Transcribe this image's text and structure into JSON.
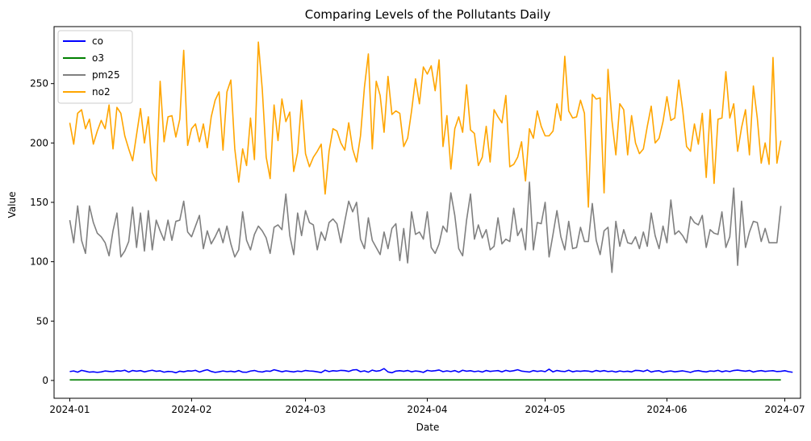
{
  "chart_data": {
    "type": "line",
    "title": "Comparing Levels of the Pollutants Daily",
    "xlabel": "Date",
    "ylabel": "Value",
    "x_start": "2024-01-01",
    "x_end": "2024-06-30",
    "xlim_days": [
      -4,
      186
    ],
    "ylim": [
      -15,
      298
    ],
    "y_ticks": [
      0,
      50,
      100,
      150,
      200,
      250
    ],
    "x_ticks": [
      {
        "label": "2024-01",
        "day": 0
      },
      {
        "label": "2024-02",
        "day": 31
      },
      {
        "label": "2024-03",
        "day": 60
      },
      {
        "label": "2024-04",
        "day": 91
      },
      {
        "label": "2024-05",
        "day": 121
      },
      {
        "label": "2024-06",
        "day": 152
      },
      {
        "label": "2024-07",
        "day": 182
      }
    ],
    "legend_position": "top-left",
    "series": [
      {
        "name": "co",
        "color": "#0000ff",
        "values": [
          7.5,
          8,
          7,
          8.5,
          7.8,
          7,
          7.3,
          6.8,
          7.2,
          8,
          7.6,
          7.4,
          8.2,
          7.9,
          8.6,
          7.1,
          8.4,
          7.8,
          8.3,
          7.2,
          8,
          8.6,
          7.7,
          8.1,
          7,
          7.6,
          7.4,
          6.5,
          7.8,
          7.3,
          8.1,
          7.9,
          8.5,
          7.1,
          8.2,
          9,
          7.6,
          6.8,
          7.3,
          8,
          7.4,
          7.8,
          7.2,
          8.3,
          7,
          6.9,
          7.9,
          8.4,
          7.5,
          7.1,
          8,
          7.7,
          9,
          8.2,
          7.3,
          8.1,
          7.6,
          7.2,
          7.9,
          7.5,
          8.4,
          8,
          7.8,
          7.3,
          6.7,
          8.6,
          7.5,
          8.2,
          7.9,
          8.5,
          8.3,
          7.6,
          8.8,
          9.1,
          7.4,
          8.1,
          7,
          8.7,
          7.8,
          8.3,
          10,
          7.2,
          6.5,
          7.9,
          8.2,
          7.7,
          8.4,
          7.3,
          8,
          7.6,
          6.8,
          8.5,
          7.9,
          8.2,
          8.8,
          7.4,
          8.1,
          7.5,
          8.3,
          7,
          8.6,
          7.8,
          8.2,
          7.4,
          7.9,
          7.1,
          8.4,
          7.6,
          8,
          8.3,
          7.2,
          8.5,
          7.7,
          8.2,
          9,
          7.9,
          7.5,
          7.1,
          8.3,
          7.6,
          8.1,
          7.4,
          9.5,
          7.2,
          8.4,
          7.8,
          7.5,
          8.6,
          7.3,
          8,
          7.7,
          8.1,
          7.9,
          7.2,
          8.4,
          7.6,
          8.3,
          7.5,
          7.9,
          7.1,
          8,
          7.4,
          7.8,
          7.2,
          8.5,
          8.3,
          7.6,
          8.8,
          7.1,
          7.9,
          8.2,
          6.9,
          7.6,
          8,
          7.3,
          7.7,
          8.1,
          7.5,
          6.8,
          7.9,
          8.3,
          7.6,
          7.2,
          8,
          7.7,
          8.5,
          7.3,
          8.1,
          7.5,
          8.4,
          8.7,
          8.2,
          7.8,
          8.4,
          7.1,
          7.9,
          8.3,
          7.6,
          8,
          8.2,
          7.5,
          7.7,
          8.2,
          7.4,
          6.9
        ]
      },
      {
        "name": "o3",
        "color": "#008000",
        "values": [
          0.5,
          0.5,
          0.5,
          0.5,
          0.5,
          0.5,
          0.5,
          0.5,
          0.5,
          0.5,
          0.5,
          0.5,
          0.5,
          0.5,
          0.5,
          0.5,
          0.5,
          0.5,
          0.5,
          0.5,
          0.5,
          0.5,
          0.5,
          0.5,
          0.5,
          0.5,
          0.5,
          0.5,
          0.5,
          0.5,
          0.5,
          0.5,
          0.5,
          0.5,
          0.5,
          0.5,
          0.5,
          0.5,
          0.5,
          0.5,
          0.5,
          0.5,
          0.5,
          0.5,
          0.5,
          0.5,
          0.5,
          0.5,
          0.5,
          0.5,
          0.5,
          0.5,
          0.5,
          0.5,
          0.5,
          0.5,
          0.5,
          0.5,
          0.5,
          0.5,
          0.5,
          0.5,
          0.5,
          0.5,
          0.5,
          0.5,
          0.5,
          0.5,
          0.5,
          0.5,
          0.5,
          0.5,
          0.5,
          0.5,
          0.5,
          0.5,
          0.5,
          0.5,
          0.5,
          0.5,
          0.5,
          0.5,
          0.5,
          0.5,
          0.5,
          0.5,
          0.5,
          0.5,
          0.5,
          0.5,
          0.5,
          0.5,
          0.5,
          0.5,
          0.5,
          0.5,
          0.5,
          0.5,
          0.5,
          0.5,
          0.5,
          0.5,
          0.5,
          0.5,
          0.5,
          0.5,
          0.5,
          0.5,
          0.5,
          0.5,
          0.5,
          0.5,
          0.5,
          0.5,
          0.5,
          0.5,
          0.5,
          0.5,
          0.5,
          0.5,
          0.5,
          0.5,
          0.5,
          0.5,
          0.5,
          0.5,
          0.5,
          0.5,
          0.5,
          0.5,
          0.5,
          0.5,
          0.5,
          0.5,
          0.5,
          0.5,
          0.5,
          0.5,
          0.5,
          0.5,
          0.5,
          0.5,
          0.5,
          0.5,
          0.5,
          0.5,
          0.5,
          0.5,
          0.5,
          0.5,
          0.5,
          0.5,
          0.5,
          0.5,
          0.5,
          0.5,
          0.5,
          0.5,
          0.5,
          0.5,
          0.5,
          0.5,
          0.5,
          0.5,
          0.5,
          0.5,
          0.5,
          0.5,
          0.5,
          0.5,
          0.5,
          0.5,
          0.5,
          0.5,
          0.5,
          0.5,
          0.5,
          0.5,
          0.5,
          0.5,
          0.5,
          0.5
        ]
      },
      {
        "name": "pm25",
        "color": "#808080",
        "values": [
          135,
          116,
          147,
          118,
          107,
          147,
          133,
          124,
          121,
          116,
          105,
          126,
          141,
          104,
          109,
          117,
          146,
          112,
          141,
          109,
          143,
          110,
          135,
          126,
          118,
          135,
          118,
          134,
          135,
          151,
          125,
          121,
          130,
          139,
          111,
          126,
          115,
          121,
          128,
          116,
          130,
          115,
          104,
          110,
          142,
          118,
          110,
          123,
          130,
          126,
          120,
          107,
          129,
          131,
          127,
          157,
          122,
          106,
          141,
          122,
          143,
          133,
          131,
          110,
          125,
          118,
          133,
          136,
          132,
          116,
          134,
          151,
          142,
          150,
          119,
          111,
          137,
          118,
          112,
          106,
          125,
          111,
          128,
          132,
          101,
          128,
          99,
          142,
          123,
          125,
          119,
          142,
          112,
          107,
          115,
          130,
          125,
          158,
          139,
          111,
          105,
          135,
          157,
          119,
          131,
          120,
          127,
          110,
          113,
          137,
          115,
          119,
          117,
          145,
          122,
          128,
          110,
          167,
          110,
          133,
          132,
          150,
          104,
          123,
          143,
          121,
          110,
          134,
          111,
          112,
          129,
          117,
          117,
          149,
          118,
          106,
          126,
          129,
          91,
          134,
          113,
          127,
          116,
          115,
          121,
          111,
          125,
          113,
          141,
          122,
          111,
          130,
          116,
          152,
          123,
          126,
          122,
          116,
          138,
          133,
          131,
          139,
          112,
          127,
          124,
          123,
          142,
          112,
          121,
          162,
          97,
          151,
          112,
          125,
          134,
          133,
          117,
          128,
          116,
          116,
          116,
          147
        ]
      },
      {
        "name": "no2",
        "color": "#ffa500",
        "values": [
          217,
          199,
          225,
          228,
          212,
          220,
          199,
          210,
          219,
          212,
          232,
          195,
          230,
          225,
          206,
          195,
          185,
          207,
          229,
          200,
          222,
          175,
          168,
          252,
          201,
          222,
          223,
          205,
          220,
          278,
          198,
          212,
          216,
          201,
          216,
          196,
          222,
          236,
          243,
          194,
          243,
          253,
          195,
          167,
          195,
          181,
          221,
          186,
          285,
          245,
          188,
          170,
          232,
          202,
          237,
          218,
          226,
          176,
          192,
          236,
          191,
          180,
          188,
          193,
          199,
          157,
          193,
          212,
          210,
          200,
          194,
          217,
          195,
          184,
          206,
          247,
          275,
          195,
          252,
          240,
          209,
          256,
          224,
          227,
          225,
          197,
          204,
          227,
          254,
          233,
          264,
          258,
          265,
          244,
          270,
          197,
          223,
          178,
          212,
          222,
          209,
          249,
          211,
          208,
          181,
          188,
          214,
          184,
          228,
          222,
          217,
          240,
          180,
          182,
          188,
          201,
          168,
          212,
          204,
          227,
          214,
          206,
          206,
          210,
          233,
          219,
          273,
          227,
          221,
          222,
          236,
          225,
          146,
          241,
          237,
          238,
          158,
          262,
          219,
          190,
          233,
          228,
          190,
          223,
          200,
          191,
          195,
          214,
          231,
          200,
          204,
          218,
          239,
          219,
          221,
          253,
          228,
          197,
          193,
          216,
          199,
          225,
          171,
          228,
          166,
          220,
          221,
          260,
          221,
          233,
          193,
          213,
          228,
          190,
          248,
          221,
          183,
          200,
          182,
          272,
          183,
          202
        ]
      }
    ]
  }
}
